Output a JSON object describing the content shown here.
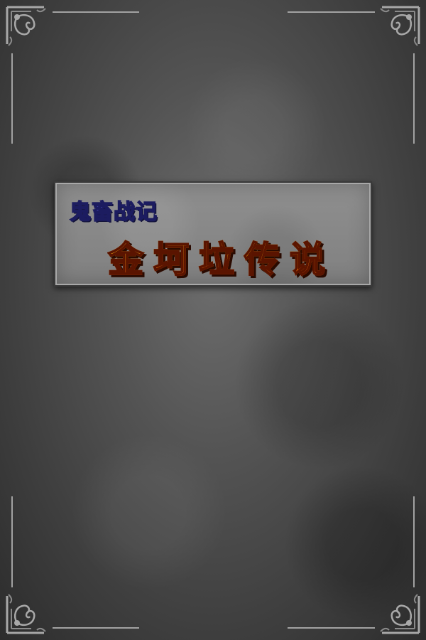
{
  "title_panel": {
    "subtitle": "鬼畜战记",
    "title": "金坷垃传说"
  },
  "colors": {
    "subtitle": "#5a5ad8",
    "title_top": "#ffe040",
    "title_bottom": "#ff4a10",
    "frame": "#9a9a9a"
  },
  "icons": [
    "corner-ornament-icon"
  ]
}
